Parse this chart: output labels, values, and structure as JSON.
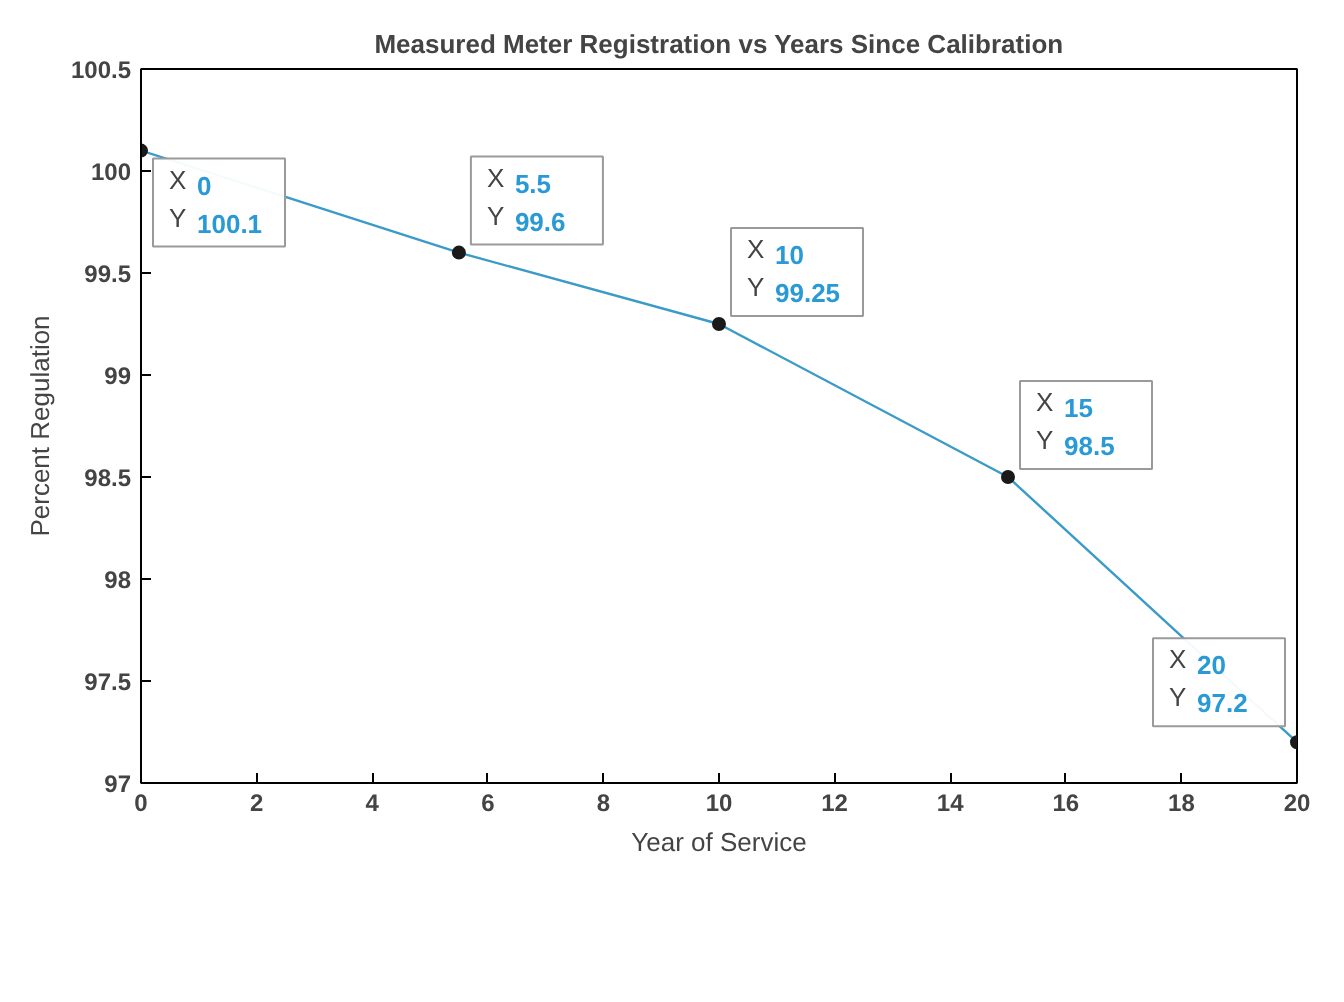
{
  "chart_data": {
    "type": "line",
    "title": "Measured Meter Registration vs Years Since Calibration",
    "xlabel": "Year of Service",
    "ylabel": "Percent Regulation",
    "x": [
      0,
      5.5,
      10,
      15,
      20
    ],
    "series": [
      {
        "color": "#3a9bc8",
        "values": [
          100.1,
          99.6,
          99.25,
          98.5,
          97.2
        ]
      }
    ],
    "xlim": [
      0,
      20
    ],
    "xticks": [
      0,
      2,
      4,
      6,
      8,
      10,
      12,
      14,
      16,
      18,
      20
    ],
    "ylim": [
      97,
      100.5
    ],
    "yticks": [
      97,
      97.5,
      98,
      98.5,
      99,
      99.5,
      100,
      100.5
    ],
    "marker": "circle",
    "line_style": "solid",
    "grid": false,
    "annotations": [
      {
        "text": "X 0\nY 100.1",
        "x": 0,
        "y": 100.1
      },
      {
        "text": "X 5.5\nY 99.6",
        "x": 5.5,
        "y": 99.6
      },
      {
        "text": "X 10\nY 99.25",
        "x": 10,
        "y": 99.25
      },
      {
        "text": "X 15\nY 98.5",
        "x": 15,
        "y": 98.5
      },
      {
        "text": "X 20\nY 97.2",
        "x": 20,
        "y": 97.2
      }
    ]
  }
}
